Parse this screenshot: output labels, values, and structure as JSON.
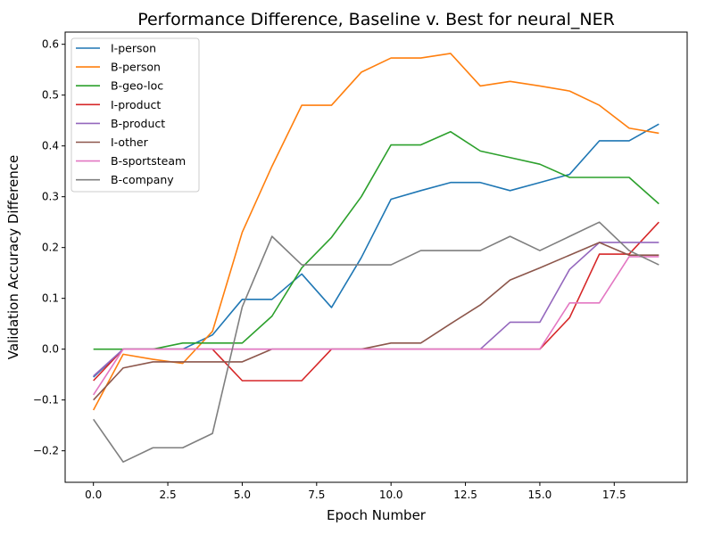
{
  "chart_data": {
    "type": "line",
    "title": "Performance Difference, Baseline v. Best for neural_NER",
    "xlabel": "Epoch Number",
    "ylabel": "Validation Accuracy Difference",
    "xlim": [
      -0.95,
      19.95
    ],
    "ylim": [
      -0.262,
      0.624
    ],
    "xticks": [
      0,
      2.5,
      5,
      7.5,
      10,
      12.5,
      15,
      17.5
    ],
    "xtick_labels": [
      "0.0",
      "2.5",
      "5.0",
      "7.5",
      "10.0",
      "12.5",
      "15.0",
      "17.5"
    ],
    "yticks": [
      -0.2,
      -0.1,
      0.0,
      0.1,
      0.2,
      0.3,
      0.4,
      0.5,
      0.6
    ],
    "ytick_labels": [
      "−0.2",
      "−0.1",
      "0.0",
      "0.1",
      "0.2",
      "0.3",
      "0.4",
      "0.5",
      "0.6"
    ],
    "grid": false,
    "legend_position": "top-left",
    "x": [
      0,
      1,
      2,
      3,
      4,
      5,
      6,
      7,
      8,
      9,
      10,
      11,
      12,
      13,
      14,
      15,
      16,
      17,
      18,
      19
    ],
    "series": [
      {
        "name": "I-person",
        "color": "#1f77b4",
        "values": [
          -0.055,
          0.0,
          0.0,
          0.0,
          0.028,
          0.098,
          0.098,
          0.148,
          0.082,
          0.18,
          0.295,
          0.312,
          0.328,
          0.328,
          0.312,
          0.328,
          0.344,
          0.41,
          0.41,
          0.443
        ]
      },
      {
        "name": "B-person",
        "color": "#ff7f0e",
        "values": [
          -0.12,
          -0.01,
          -0.02,
          -0.028,
          0.035,
          0.23,
          0.36,
          0.48,
          0.48,
          0.545,
          0.573,
          0.573,
          0.582,
          0.518,
          0.527,
          0.518,
          0.508,
          0.48,
          0.435,
          0.425
        ]
      },
      {
        "name": "B-geo-loc",
        "color": "#2ca02c",
        "values": [
          0.0,
          0.0,
          0.0,
          0.012,
          0.012,
          0.012,
          0.065,
          0.16,
          0.22,
          0.3,
          0.402,
          0.402,
          0.428,
          0.39,
          0.377,
          0.364,
          0.338,
          0.338,
          0.338,
          0.286
        ]
      },
      {
        "name": "I-product",
        "color": "#d62728",
        "values": [
          -0.062,
          0.0,
          0.0,
          0.0,
          0.0,
          -0.062,
          -0.062,
          -0.062,
          0.0,
          0.0,
          0.0,
          0.0,
          0.0,
          0.0,
          0.0,
          0.0,
          0.062,
          0.187,
          0.187,
          0.25
        ]
      },
      {
        "name": "B-product",
        "color": "#9467bd",
        "values": [
          -0.053,
          0.0,
          0.0,
          0.0,
          0.0,
          0.0,
          0.0,
          0.0,
          0.0,
          0.0,
          0.0,
          0.0,
          0.0,
          0.0,
          0.053,
          0.053,
          0.157,
          0.21,
          0.21,
          0.21
        ]
      },
      {
        "name": "I-other",
        "color": "#8c564b",
        "values": [
          -0.1,
          -0.037,
          -0.025,
          -0.025,
          -0.025,
          -0.025,
          0.0,
          0.0,
          0.0,
          0.0,
          0.012,
          0.012,
          0.05,
          0.087,
          0.136,
          0.16,
          0.185,
          0.21,
          0.185,
          0.185
        ]
      },
      {
        "name": "B-sportsteam",
        "color": "#e377c2",
        "values": [
          -0.09,
          0.0,
          0.0,
          0.0,
          0.0,
          0.0,
          0.0,
          0.0,
          0.0,
          0.0,
          0.0,
          0.0,
          0.0,
          0.0,
          0.0,
          0.0,
          0.091,
          0.091,
          0.182,
          0.182
        ]
      },
      {
        "name": "B-company",
        "color": "#7f7f7f",
        "values": [
          -0.138,
          -0.222,
          -0.194,
          -0.194,
          -0.166,
          0.083,
          0.222,
          0.166,
          0.166,
          0.166,
          0.166,
          0.194,
          0.194,
          0.194,
          0.222,
          0.194,
          0.222,
          0.25,
          0.194,
          0.166
        ]
      }
    ]
  }
}
